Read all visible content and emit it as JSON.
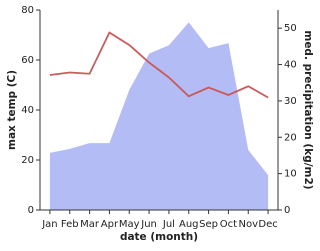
{
  "chart_data": {
    "type": "line",
    "x_label": "date (month)",
    "y_label": "max temp (C)",
    "y2_label": "med. precipitation (kg/m2)",
    "categories": [
      "Jan",
      "Feb",
      "Mar",
      "Apr",
      "May",
      "Jun",
      "Jul",
      "Aug",
      "Sep",
      "Oct",
      "Nov",
      "Dec"
    ],
    "ylim": [
      0,
      80
    ],
    "yticks": [
      0,
      20,
      40,
      60,
      80
    ],
    "y2lim": [
      0,
      55
    ],
    "y2ticks": [
      0,
      10,
      20,
      30,
      40,
      50
    ],
    "series": [
      {
        "name": "med. precipitation (kg/m2)",
        "color": "#b3bcf4",
        "axis": "y2",
        "values": [
          15.7,
          16.8,
          18.4,
          18.4,
          33,
          43,
          45.3,
          51.6,
          44.5,
          45.9,
          16.5,
          9.6
        ]
      },
      {
        "name": "max temp (C)",
        "color": "#c95b5b",
        "values": [
          54,
          55,
          54.5,
          71,
          66,
          59,
          53,
          45.5,
          49,
          46,
          49.5,
          45
        ]
      }
    ]
  }
}
